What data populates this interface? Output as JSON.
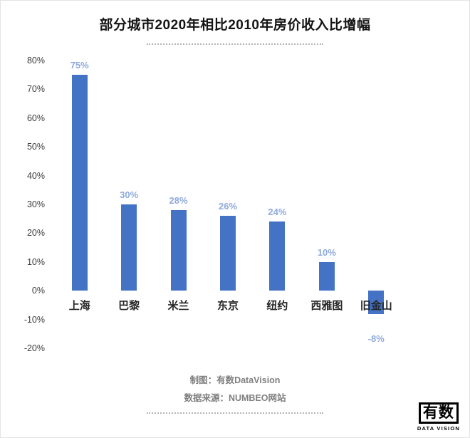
{
  "title": "部分城市2020年相比2010年房价收入比增幅",
  "footer": {
    "line1": "制图：有数DataVision",
    "line2": "数据来源：NUMBEO网站"
  },
  "logo": {
    "text": "有数",
    "subtext": "DATA VISION"
  },
  "colors": {
    "bar": "#4472c4",
    "value_label": "#8faadc",
    "category_label": "#262626",
    "axis_text": "#3d3d3d",
    "footer_text": "#7f7f7f"
  },
  "chart_data": {
    "type": "bar",
    "title": "部分城市2020年相比2010年房价收入比增幅",
    "categories": [
      "上海",
      "巴黎",
      "米兰",
      "东京",
      "纽约",
      "西雅图",
      "旧金山"
    ],
    "values": [
      75,
      30,
      28,
      26,
      24,
      10,
      -8
    ],
    "value_labels": [
      "75%",
      "30%",
      "28%",
      "26%",
      "24%",
      "10%",
      "-8%"
    ],
    "xlabel": "",
    "ylabel": "",
    "ylim": [
      -20,
      80
    ],
    "ytick_step": 10,
    "ytick_labels": [
      "80%",
      "70%",
      "60%",
      "50%",
      "40%",
      "30%",
      "20%",
      "10%",
      "0%",
      "-10%",
      "-20%"
    ],
    "grid": false,
    "legend": false,
    "bar_color": "#4472c4",
    "label_color": "#8faadc"
  }
}
